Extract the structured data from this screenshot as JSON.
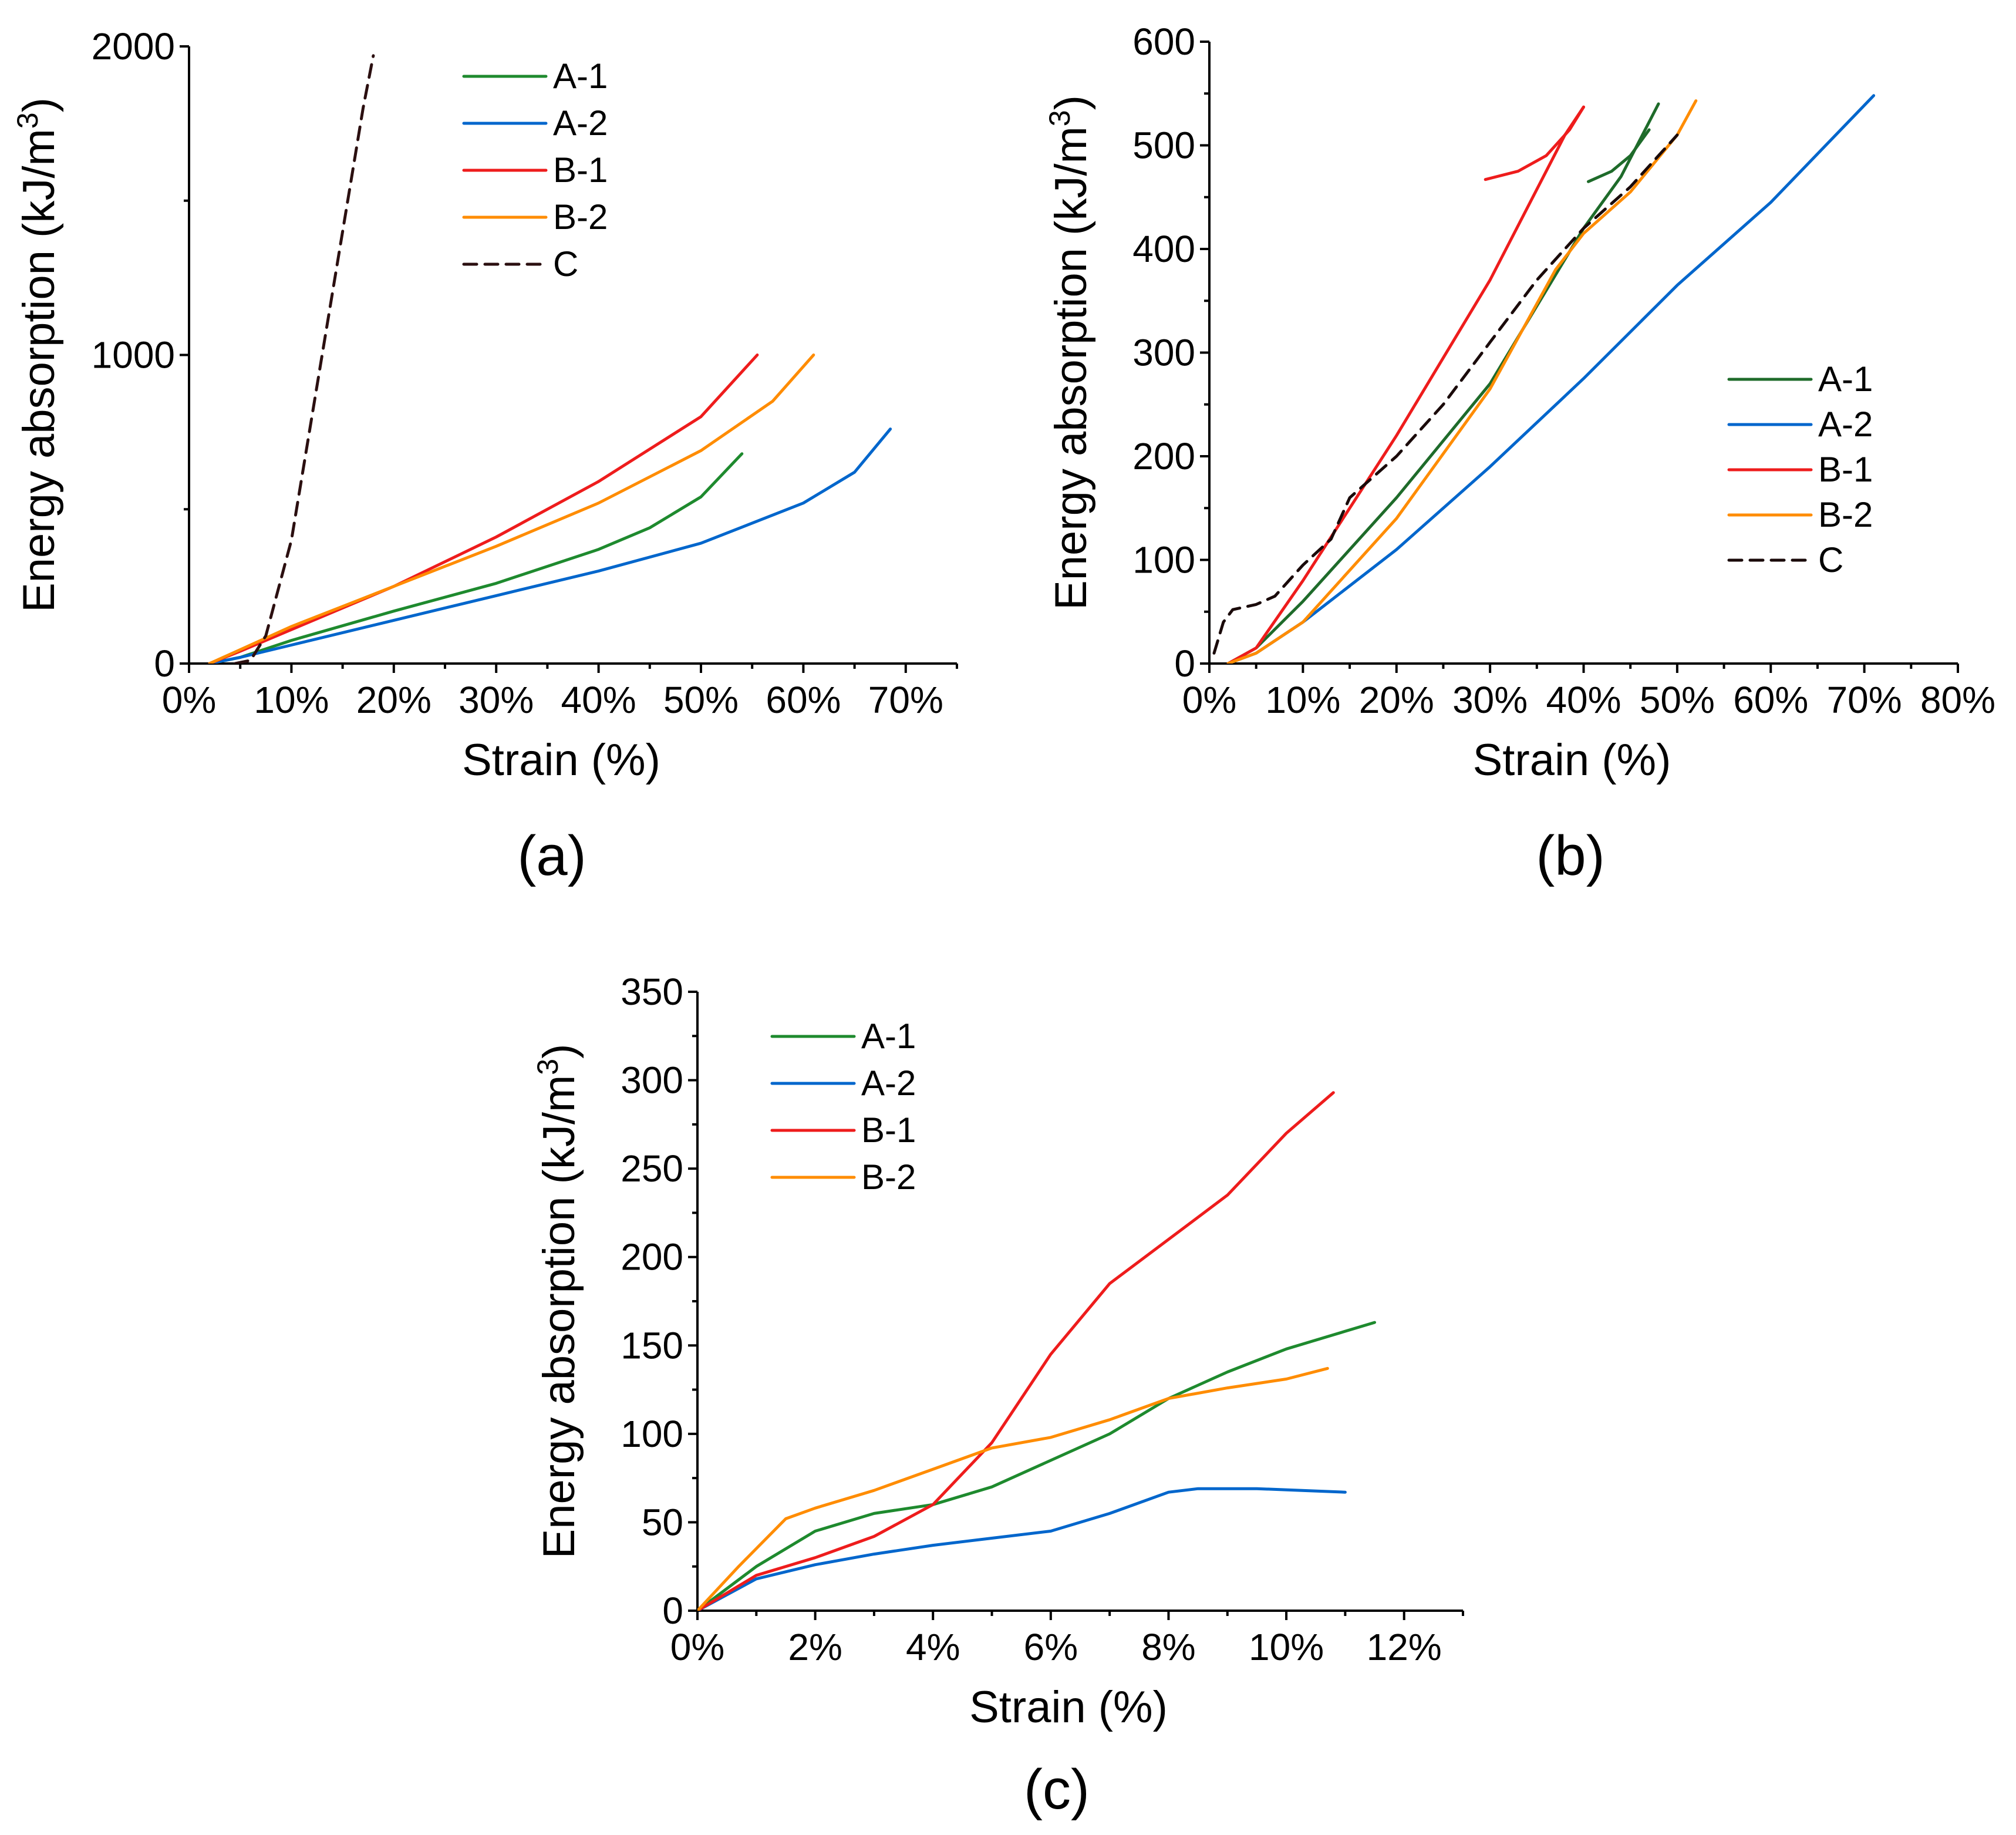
{
  "chart_data": [
    {
      "type": "line",
      "panel_label": "(a)",
      "xlabel": "Strain (%)",
      "ylabel": "Energy absorption (kJ/m",
      "ylabel_sup": "3",
      "ylabel_end": ")",
      "xlim": [
        0,
        75
      ],
      "ylim": [
        0,
        2000
      ],
      "x_ticks": [
        0,
        10,
        20,
        30,
        40,
        50,
        60,
        70
      ],
      "x_tick_labels": [
        "0%",
        "10%",
        "20%",
        "30%",
        "40%",
        "50%",
        "60%",
        "70%"
      ],
      "y_ticks": [
        0,
        1000,
        2000
      ],
      "y_tick_labels": [
        "0",
        "1000",
        "2000"
      ],
      "legend_position": "top-center",
      "series": [
        {
          "name": "A-1",
          "color": "#1e8a2e",
          "dash": "solid",
          "x": [
            2,
            5,
            10,
            20,
            30,
            40,
            45,
            50,
            54
          ],
          "y": [
            0,
            20,
            75,
            170,
            260,
            370,
            440,
            540,
            680
          ]
        },
        {
          "name": "A-2",
          "color": "#0066cc",
          "dash": "solid",
          "x": [
            2,
            5,
            10,
            20,
            30,
            40,
            50,
            60,
            65,
            68.5
          ],
          "y": [
            0,
            20,
            60,
            140,
            220,
            300,
            390,
            520,
            620,
            760
          ]
        },
        {
          "name": "B-1",
          "color": "#ee1c1c",
          "dash": "solid",
          "x": [
            2,
            5,
            10,
            20,
            30,
            40,
            50,
            55.5
          ],
          "y": [
            0,
            40,
            110,
            250,
            410,
            590,
            800,
            1000
          ]
        },
        {
          "name": "B-2",
          "color": "#ff8c00",
          "dash": "solid",
          "x": [
            2,
            5,
            10,
            20,
            30,
            40,
            50,
            57,
            61
          ],
          "y": [
            0,
            45,
            120,
            250,
            380,
            520,
            690,
            850,
            1000
          ]
        },
        {
          "name": "C",
          "color": "#2b0f10",
          "dash": "dashed",
          "x": [
            4.5,
            6,
            7.5,
            10,
            13,
            15,
            17,
            18
          ],
          "y": [
            0,
            10,
            90,
            400,
            1000,
            1400,
            1800,
            1970
          ]
        }
      ]
    },
    {
      "type": "line",
      "panel_label": "(b)",
      "xlabel": "Strain (%)",
      "ylabel": "Energy absorption (kJ/m",
      "ylabel_sup": "3",
      "ylabel_end": ")",
      "xlim": [
        0,
        80
      ],
      "ylim": [
        0,
        600
      ],
      "x_ticks": [
        0,
        10,
        20,
        30,
        40,
        50,
        60,
        70,
        80
      ],
      "x_tick_labels": [
        "0%",
        "10%",
        "20%",
        "30%",
        "40%",
        "50%",
        "60%",
        "70%",
        "80%"
      ],
      "y_ticks": [
        0,
        100,
        200,
        300,
        400,
        500,
        600
      ],
      "y_tick_labels": [
        "0",
        "100",
        "200",
        "300",
        "400",
        "500",
        "600"
      ],
      "legend_position": "right",
      "series": [
        {
          "name": "A-1",
          "color": "#1e6b2a",
          "dash": "solid",
          "x": [
            2,
            5,
            10,
            20,
            30,
            40,
            44,
            46,
            48
          ],
          "y": [
            0,
            15,
            60,
            160,
            270,
            420,
            470,
            505,
            540
          ]
        },
        {
          "name": "A-1",
          "color": "#1e6b2a",
          "dash": "solid",
          "legend": false,
          "x": [
            40.5,
            43,
            45,
            47
          ],
          "y": [
            465,
            475,
            490,
            515
          ]
        },
        {
          "name": "A-2",
          "color": "#0066cc",
          "dash": "solid",
          "x": [
            2,
            5,
            10,
            20,
            30,
            40,
            50,
            60,
            71
          ],
          "y": [
            0,
            10,
            40,
            110,
            190,
            275,
            365,
            445,
            548
          ]
        },
        {
          "name": "B-1",
          "color": "#ee1c1c",
          "dash": "solid",
          "x": [
            2,
            5,
            10,
            20,
            30,
            38,
            40
          ],
          "y": [
            0,
            15,
            80,
            220,
            370,
            510,
            537
          ]
        },
        {
          "name": "B-1",
          "color": "#ee1c1c",
          "dash": "solid",
          "legend": false,
          "x": [
            29.5,
            33,
            36,
            38.5,
            40
          ],
          "y": [
            467,
            475,
            490,
            515,
            537
          ]
        },
        {
          "name": "B-2",
          "color": "#ff8c00",
          "dash": "solid",
          "x": [
            2,
            5,
            10,
            20,
            30,
            37,
            40,
            45,
            50,
            52
          ],
          "y": [
            0,
            10,
            40,
            140,
            265,
            380,
            415,
            455,
            510,
            543
          ]
        },
        {
          "name": "C",
          "color": "#1a0a0a",
          "dash": "dashed",
          "x": [
            0.5,
            1.5,
            2.5,
            5,
            7,
            10,
            13,
            15,
            20,
            25,
            30,
            35,
            40,
            45,
            50
          ],
          "y": [
            10,
            40,
            52,
            57,
            65,
            95,
            120,
            160,
            200,
            250,
            310,
            370,
            420,
            460,
            510
          ]
        }
      ]
    },
    {
      "type": "line",
      "panel_label": "(c)",
      "xlabel": "Strain (%)",
      "ylabel": "Energy absorption (kJ/m",
      "ylabel_sup": "3",
      "ylabel_end": ")",
      "xlim": [
        0,
        13
      ],
      "ylim": [
        0,
        350
      ],
      "x_ticks": [
        0,
        2,
        4,
        6,
        8,
        10,
        12
      ],
      "x_tick_labels": [
        "0%",
        "2%",
        "4%",
        "6%",
        "8%",
        "10%",
        "12%"
      ],
      "y_ticks": [
        0,
        50,
        100,
        150,
        200,
        250,
        300,
        350
      ],
      "y_tick_labels": [
        "0",
        "50",
        "100",
        "150",
        "200",
        "250",
        "300",
        "350"
      ],
      "legend_position": "top-left",
      "series": [
        {
          "name": "A-1",
          "color": "#1e8a2e",
          "dash": "solid",
          "x": [
            0,
            1,
            2,
            3,
            4,
            5,
            6,
            7,
            8,
            9,
            10,
            11.5
          ],
          "y": [
            0,
            25,
            45,
            55,
            60,
            70,
            85,
            100,
            120,
            135,
            148,
            163
          ]
        },
        {
          "name": "A-2",
          "color": "#0066cc",
          "dash": "solid",
          "x": [
            0,
            1,
            2,
            3,
            4,
            5,
            6,
            7,
            8,
            8.5,
            9.5,
            11
          ],
          "y": [
            0,
            18,
            26,
            32,
            37,
            41,
            45,
            55,
            67,
            69,
            69,
            67
          ]
        },
        {
          "name": "B-1",
          "color": "#ee1c1c",
          "dash": "solid",
          "x": [
            0,
            1,
            2,
            3,
            4,
            5,
            6,
            7,
            8,
            9,
            10,
            10.8
          ],
          "y": [
            0,
            20,
            30,
            42,
            60,
            95,
            145,
            185,
            210,
            235,
            270,
            293
          ]
        },
        {
          "name": "B-2",
          "color": "#ff8c00",
          "dash": "solid",
          "x": [
            0,
            0.7,
            1.5,
            2,
            3,
            4,
            5,
            6,
            7,
            8,
            9,
            10,
            10.7
          ],
          "y": [
            0,
            25,
            52,
            58,
            68,
            80,
            92,
            98,
            108,
            120,
            126,
            131,
            137
          ]
        }
      ]
    }
  ]
}
